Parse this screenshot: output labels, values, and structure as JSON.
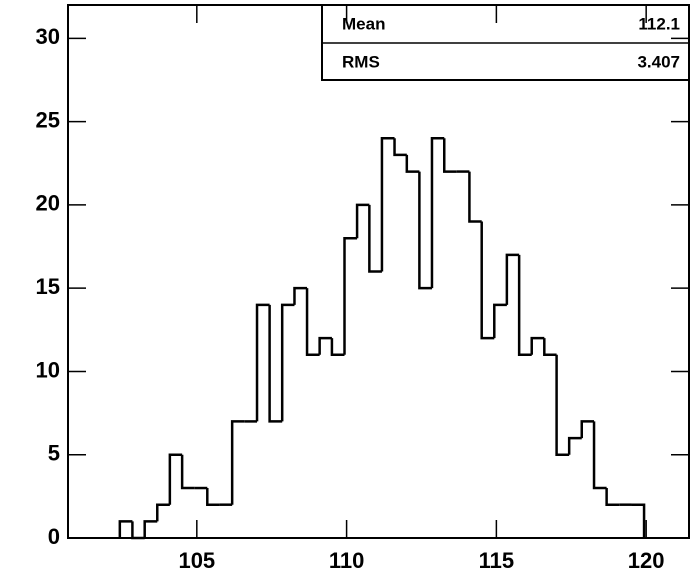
{
  "chart_data": {
    "type": "histogram",
    "bins": [
      102.43,
      102.85,
      103.26,
      103.68,
      104.1,
      104.51,
      104.93,
      105.35,
      105.76,
      106.18,
      106.6,
      107.01,
      107.43,
      107.85,
      108.26,
      108.68,
      109.1,
      109.51,
      109.93,
      110.35,
      110.76,
      111.18,
      111.6,
      112.01,
      112.43,
      112.85,
      113.26,
      113.68,
      114.1,
      114.51,
      114.93,
      115.35,
      115.76,
      116.18,
      116.6,
      117.01,
      117.43,
      117.85,
      118.26,
      118.68,
      119.1,
      119.51,
      119.93
    ],
    "values": [
      1,
      0,
      1,
      2,
      5,
      3,
      3,
      2,
      2,
      7,
      7,
      14,
      7,
      14,
      15,
      11,
      12,
      11,
      18,
      20,
      16,
      24,
      23,
      22,
      15,
      24,
      22,
      22,
      19,
      12,
      14,
      17,
      11,
      12,
      11,
      5,
      6,
      7,
      3,
      2,
      2,
      2
    ],
    "color": "#000000",
    "xlim": [
      100.7,
      121.43
    ],
    "xticks": [
      105,
      110,
      115,
      120
    ],
    "ylim": [
      0,
      32
    ],
    "yticks": [
      0,
      5,
      10,
      15,
      20,
      25,
      30
    ],
    "stats": [
      {
        "label": "Mean",
        "value": "112.1"
      },
      {
        "label": "RMS",
        "value": "3.407"
      }
    ]
  }
}
